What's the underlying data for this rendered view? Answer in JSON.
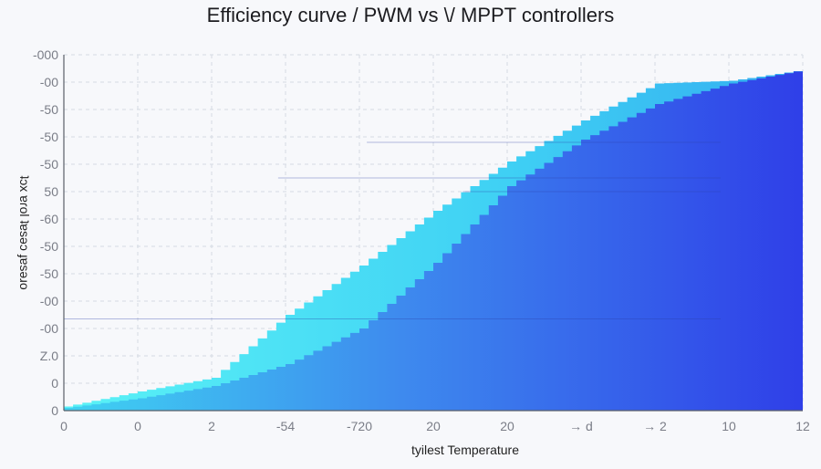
{
  "chart_data": {
    "type": "area",
    "title": "Efficiency curve / PWM vs  \\/ MPPT controllers",
    "xlabel": "tyilest  Temperature",
    "ylabel": "ʇɔx ɐɾol ʇɐsǝɔ ɟɐsǝɹo",
    "x_tick_labels": [
      "0",
      "0",
      "2",
      "-54",
      "-720",
      "20",
      "20",
      "→ d",
      "→ 2",
      "10",
      "12"
    ],
    "y_tick_labels": [
      "-000",
      "-00",
      "-50",
      "-50",
      "-50",
      "50",
      "-60",
      "-50",
      "-50",
      "-00",
      "-00",
      "Z.0",
      "0",
      "0"
    ],
    "x": [
      0,
      1,
      2,
      3,
      4,
      5,
      6,
      7,
      8,
      9,
      10
    ],
    "xlim": [
      0,
      10
    ],
    "ylim": [
      0,
      13
    ],
    "grid": true,
    "legend": "none",
    "series": [
      {
        "color": "#4de8f4",
        "values": [
          0.15,
          0.7,
          1.2,
          3.5,
          5.3,
          7.3,
          9.1,
          10.6,
          11.95,
          12.05,
          12.45
        ]
      },
      {
        "color": "#3f63ee",
        "values": [
          0.1,
          0.45,
          0.9,
          1.7,
          3.0,
          5.4,
          8.2,
          9.9,
          11.2,
          11.95,
          12.45
        ]
      }
    ],
    "colors": {
      "accent_light": "#4de8f4",
      "accent_dark": "#2f3fe8",
      "grid": "#d6dae3",
      "axis": "#5a5e68",
      "background": "#f7f8fb"
    }
  }
}
